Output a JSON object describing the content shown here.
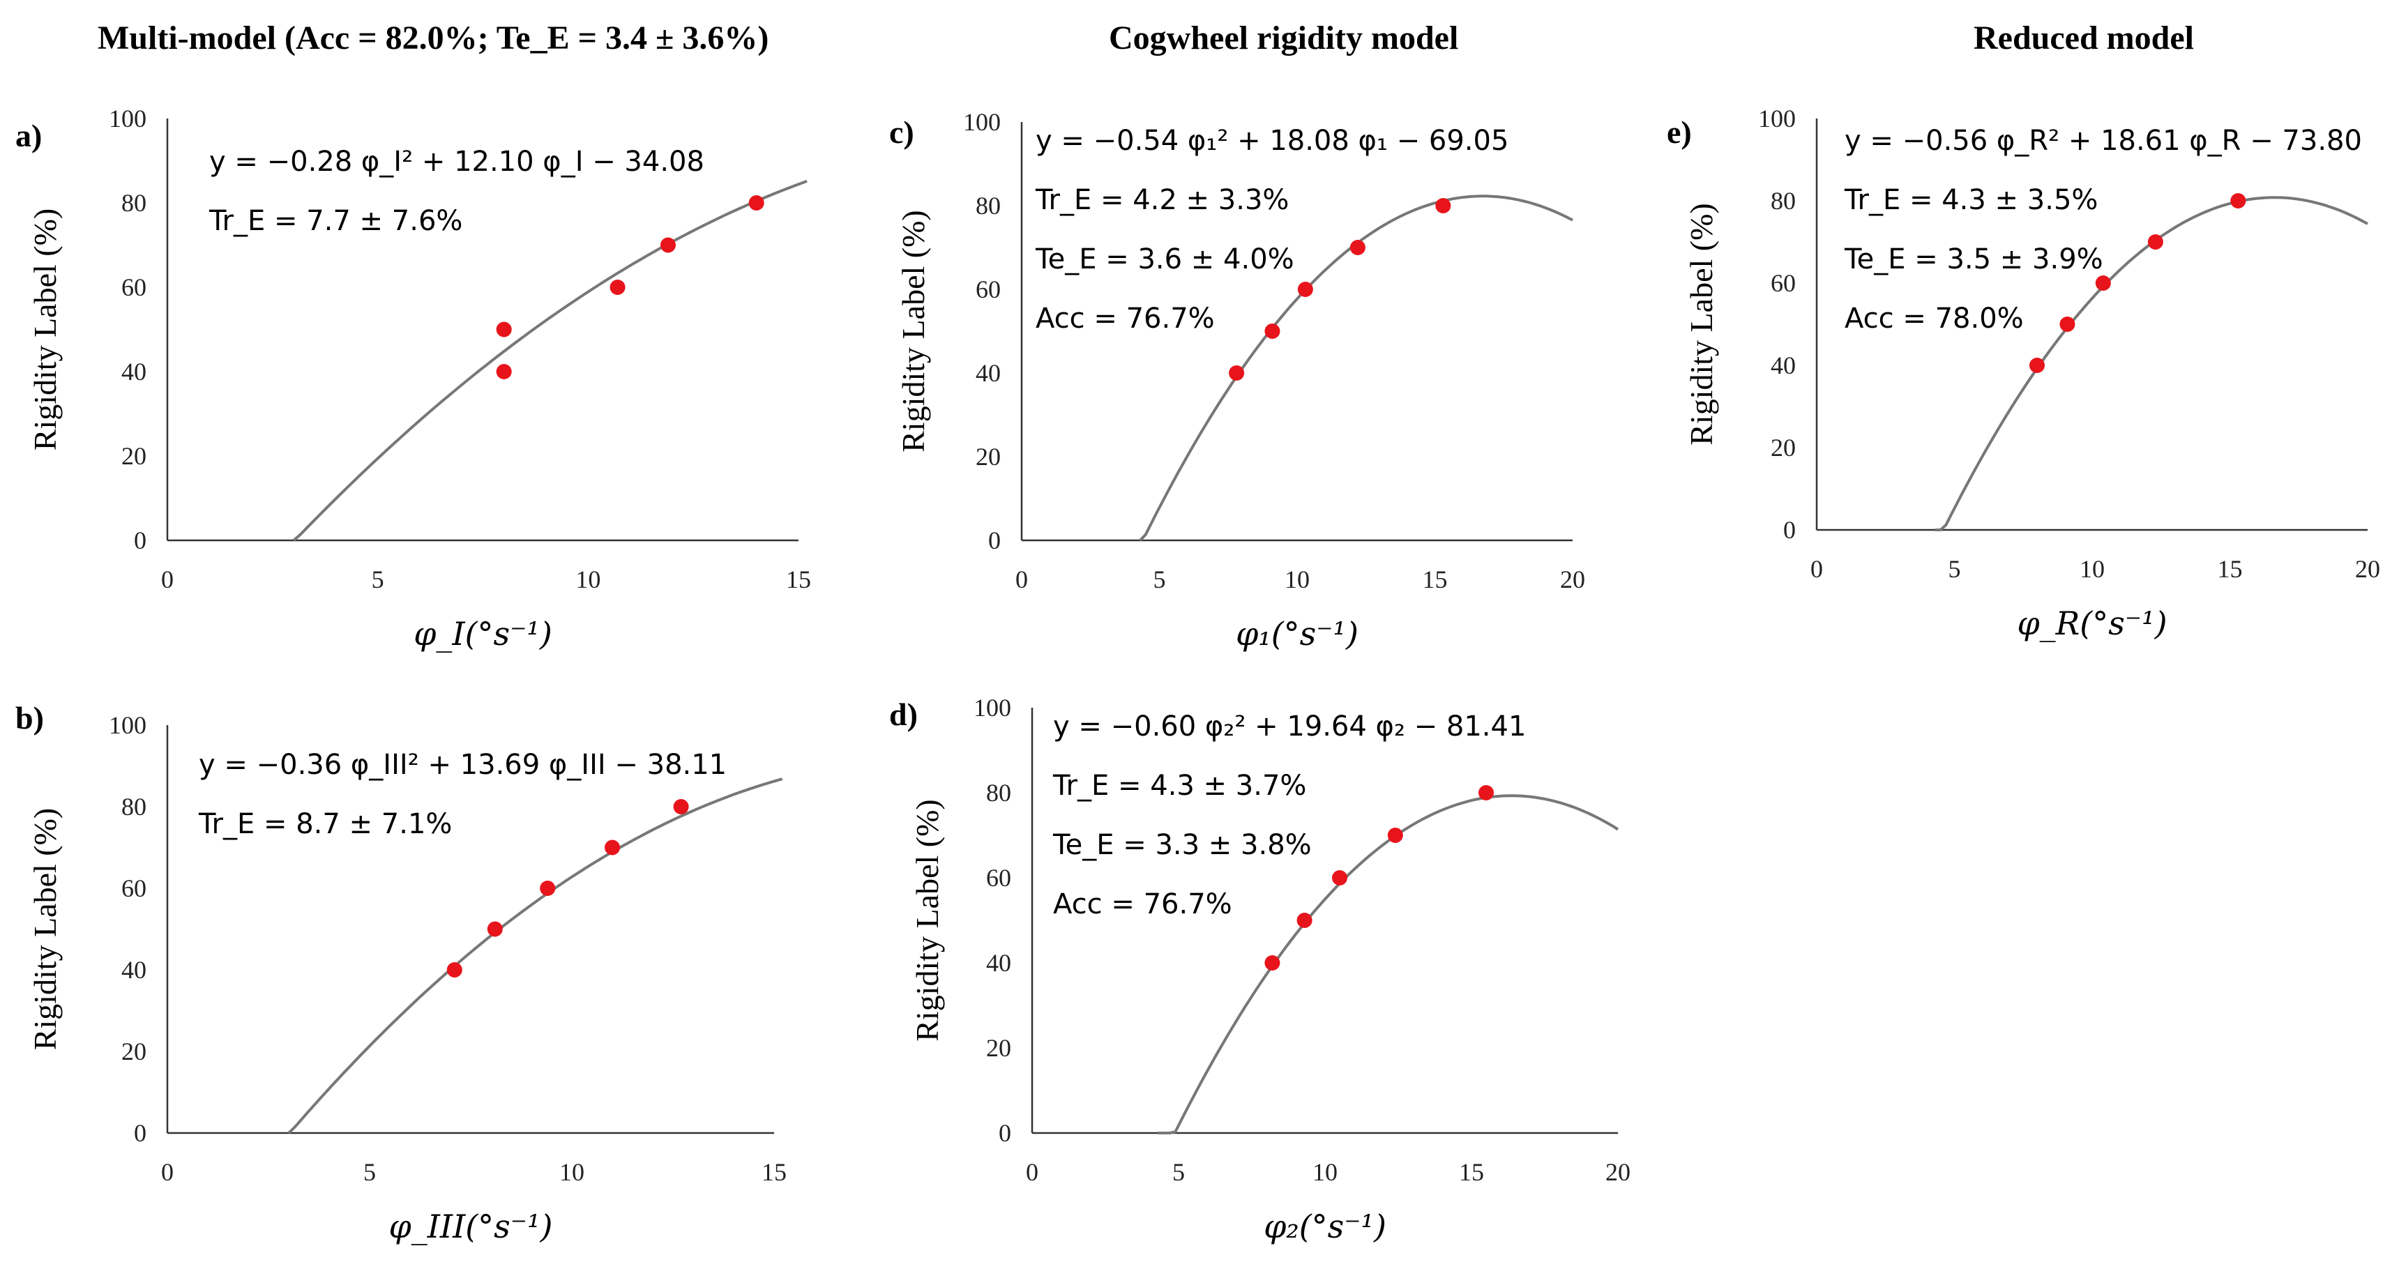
{
  "headers": [
    {
      "text": "Multi-model (Acc = 82.0%; Te_E = 3.4 ± 3.6%)"
    },
    {
      "text": "Cogwheel rigidity model"
    },
    {
      "text": "Reduced model"
    }
  ],
  "chart_data": [
    {
      "panel": "a)",
      "type": "scatter",
      "xlabel": "φ_I(°s⁻¹)",
      "ylabel": "Rigidity Label (%)",
      "xlim": [
        0,
        15
      ],
      "ylim": [
        0,
        100
      ],
      "xticks": [
        0,
        5,
        10,
        15
      ],
      "yticks": [
        0,
        20,
        40,
        60,
        80,
        100
      ],
      "fit": {
        "a": -0.28,
        "b": 12.1,
        "c": -34.08,
        "x_range": [
          3.0,
          15.2
        ]
      },
      "points": {
        "x": [
          8.0,
          8.0,
          10.7,
          11.9,
          14.0
        ],
        "y": [
          40,
          50,
          60,
          70,
          80
        ]
      },
      "annotations": [
        "y = −0.28 φ_I² + 12.10 φ_I − 34.08",
        "Tr_E = 7.7 ± 7.6%"
      ]
    },
    {
      "panel": "b)",
      "type": "scatter",
      "xlabel": "φ_III(°s⁻¹)",
      "ylabel": "Rigidity Label (%)",
      "xlim": [
        0,
        15
      ],
      "ylim": [
        0,
        100
      ],
      "xticks": [
        0,
        5,
        10,
        15
      ],
      "yticks": [
        0,
        20,
        40,
        60,
        80,
        100
      ],
      "fit": {
        "a": -0.36,
        "b": 13.69,
        "c": -38.11,
        "x_range": [
          3.0,
          15.2
        ]
      },
      "points": {
        "x": [
          7.1,
          8.1,
          9.4,
          11.0,
          12.7
        ],
        "y": [
          40,
          50,
          60,
          70,
          80
        ]
      },
      "annotations": [
        "y = −0.36 φ_III² + 13.69 φ_III − 38.11",
        "Tr_E = 8.7 ± 7.1%"
      ]
    },
    {
      "panel": "c)",
      "type": "scatter",
      "xlabel": "φ₁(°s⁻¹)",
      "ylabel": "Rigidity Label (%)",
      "xlim": [
        0,
        20
      ],
      "ylim": [
        0,
        100
      ],
      "xticks": [
        0,
        5,
        10,
        15,
        20
      ],
      "yticks": [
        0,
        20,
        40,
        60,
        80,
        100
      ],
      "fit": {
        "a": -0.54,
        "b": 18.08,
        "c": -69.05,
        "x_range": [
          4.3,
          20.0
        ]
      },
      "points": {
        "x": [
          7.8,
          9.1,
          10.3,
          12.2,
          15.3
        ],
        "y": [
          40,
          50,
          60,
          70,
          80
        ]
      },
      "annotations": [
        "y = −0.54 φ₁² + 18.08 φ₁ − 69.05",
        "Tr_E = 4.2 ± 3.3%",
        "Te_E = 3.6 ± 4.0%",
        "Acc = 76.7%"
      ]
    },
    {
      "panel": "d)",
      "type": "scatter",
      "xlabel": "φ₂(°s⁻¹)",
      "ylabel": "Rigidity Label (%)",
      "xlim": [
        0,
        20
      ],
      "ylim": [
        0,
        100
      ],
      "xticks": [
        0,
        5,
        10,
        15,
        20
      ],
      "yticks": [
        0,
        20,
        40,
        60,
        80,
        100
      ],
      "fit": {
        "a": -0.6,
        "b": 19.64,
        "c": -81.41,
        "x_range": [
          4.3,
          20.0
        ]
      },
      "points": {
        "x": [
          8.2,
          9.3,
          10.5,
          12.4,
          15.5
        ],
        "y": [
          40,
          50,
          60,
          70,
          80
        ]
      },
      "annotations": [
        "y = −0.60 φ₂² + 19.64 φ₂ − 81.41",
        "Tr_E = 4.3 ± 3.7%",
        "Te_E = 3.3 ± 3.8%",
        "Acc = 76.7%"
      ]
    },
    {
      "panel": "e)",
      "type": "scatter",
      "xlabel": "φ_R(°s⁻¹)",
      "ylabel": "Rigidity Label (%)",
      "xlim": [
        0,
        20
      ],
      "ylim": [
        0,
        100
      ],
      "xticks": [
        0,
        5,
        10,
        15,
        20
      ],
      "yticks": [
        0,
        20,
        40,
        60,
        80,
        100
      ],
      "fit": {
        "a": -0.56,
        "b": 18.61,
        "c": -73.8,
        "x_range": [
          4.3,
          20.0
        ]
      },
      "points": {
        "x": [
          8.0,
          9.1,
          10.4,
          12.3,
          15.3
        ],
        "y": [
          40,
          50,
          60,
          70,
          80
        ]
      },
      "annotations": [
        "y = −0.56 φ_R² + 18.61 φ_R − 73.80",
        "Tr_E = 4.3 ± 3.5%",
        "Te_E = 3.5 ± 3.9%",
        "Acc = 78.0%"
      ]
    }
  ]
}
